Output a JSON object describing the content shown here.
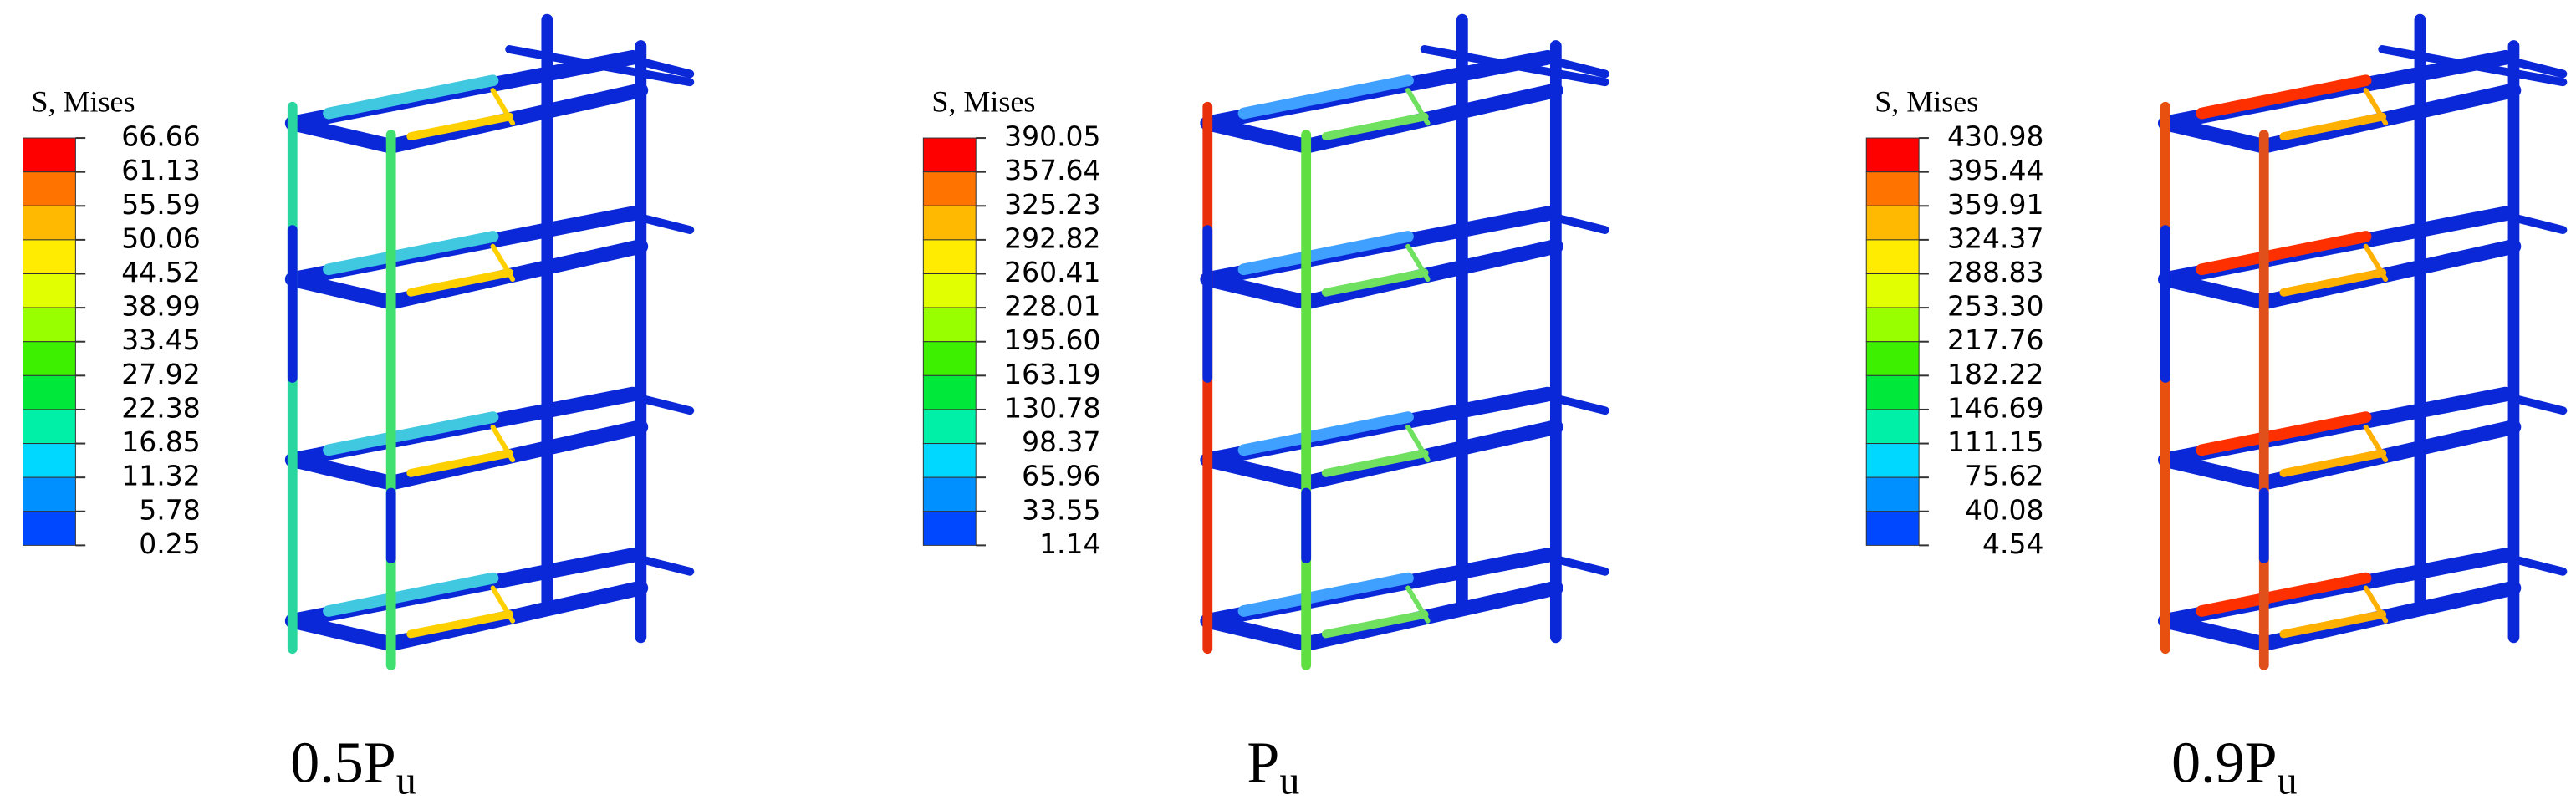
{
  "panels": [
    {
      "legend_title": "S, Mises",
      "legend_values": [
        "66.66",
        "61.13",
        "55.59",
        "50.06",
        "44.52",
        "38.99",
        "33.45",
        "27.92",
        "22.38",
        "16.85",
        "11.32",
        "5.78",
        "0.25"
      ],
      "caption": {
        "main": "0.5P",
        "subscript": "u"
      }
    },
    {
      "legend_title": "S, Mises",
      "legend_values": [
        "390.05",
        "357.64",
        "325.23",
        "292.82",
        "260.41",
        "228.01",
        "195.60",
        "163.19",
        "130.78",
        "98.37",
        "65.96",
        "33.55",
        "1.14"
      ],
      "caption": {
        "main": "P",
        "subscript": "u"
      }
    },
    {
      "legend_title": "S, Mises",
      "legend_values": [
        "430.98",
        "395.44",
        "359.91",
        "324.37",
        "288.83",
        "253.30",
        "217.76",
        "182.22",
        "146.69",
        "111.15",
        "75.62",
        "40.08",
        "4.54"
      ],
      "caption": {
        "main": "0.9P",
        "subscript": "u"
      }
    }
  ]
}
